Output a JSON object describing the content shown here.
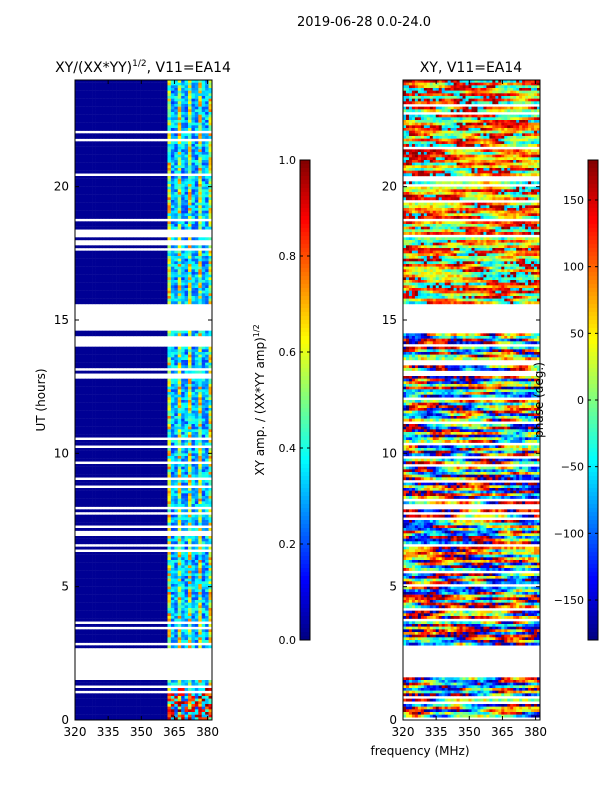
{
  "suptitle": "2019-06-28 0.0-24.0",
  "xlabel": "frequency (MHz)",
  "ylabel": "UT (hours)",
  "colors": {
    "jet_low": "#00008f",
    "jet_mid": "#80ff80",
    "jet_high": "#800000",
    "gap": "#ffffff"
  },
  "chart_data": [
    {
      "type": "heatmap",
      "title": "XY/(XX*YY)^(1/2), V11=EA14",
      "title_main": "XY/(XX*YY)",
      "title_exp": "1/2",
      "title_tail": ", V11=EA14",
      "xlim": [
        320,
        382
      ],
      "ylim": [
        0,
        24
      ],
      "xticks": [
        320,
        335,
        350,
        365,
        380
      ],
      "yticks": [
        0,
        5,
        10,
        15,
        20
      ],
      "colorbar": {
        "label": "XY amp. / (XX*YY amp)^(1/2)",
        "label_main": "XY amp. / (XX*YY amp)",
        "label_exp": "1/2",
        "range": [
          0.0,
          1.0
        ],
        "ticks": [
          "0.0",
          "0.2",
          "0.4",
          "0.6",
          "0.8",
          "1.0"
        ]
      },
      "data_gaps_ut": [
        [
          1.6,
          2.7
        ],
        [
          14.6,
          15.6
        ]
      ],
      "active_band_mhz": [
        362,
        382
      ],
      "cmap": "jet"
    },
    {
      "type": "heatmap",
      "title": "XY, V11=EA14",
      "xlim": [
        320,
        382
      ],
      "ylim": [
        0,
        24
      ],
      "xticks": [
        320,
        335,
        350,
        365,
        380
      ],
      "yticks": [
        0,
        5,
        10,
        15,
        20
      ],
      "colorbar": {
        "label": "phase (deg.)",
        "range": [
          -180,
          180
        ],
        "ticks": [
          "−150",
          "−100",
          "−50",
          "0",
          "50",
          "100",
          "150"
        ]
      },
      "data_gaps_ut": [
        [
          1.6,
          2.7
        ],
        [
          14.6,
          15.6
        ]
      ],
      "cmap": "jet"
    }
  ]
}
